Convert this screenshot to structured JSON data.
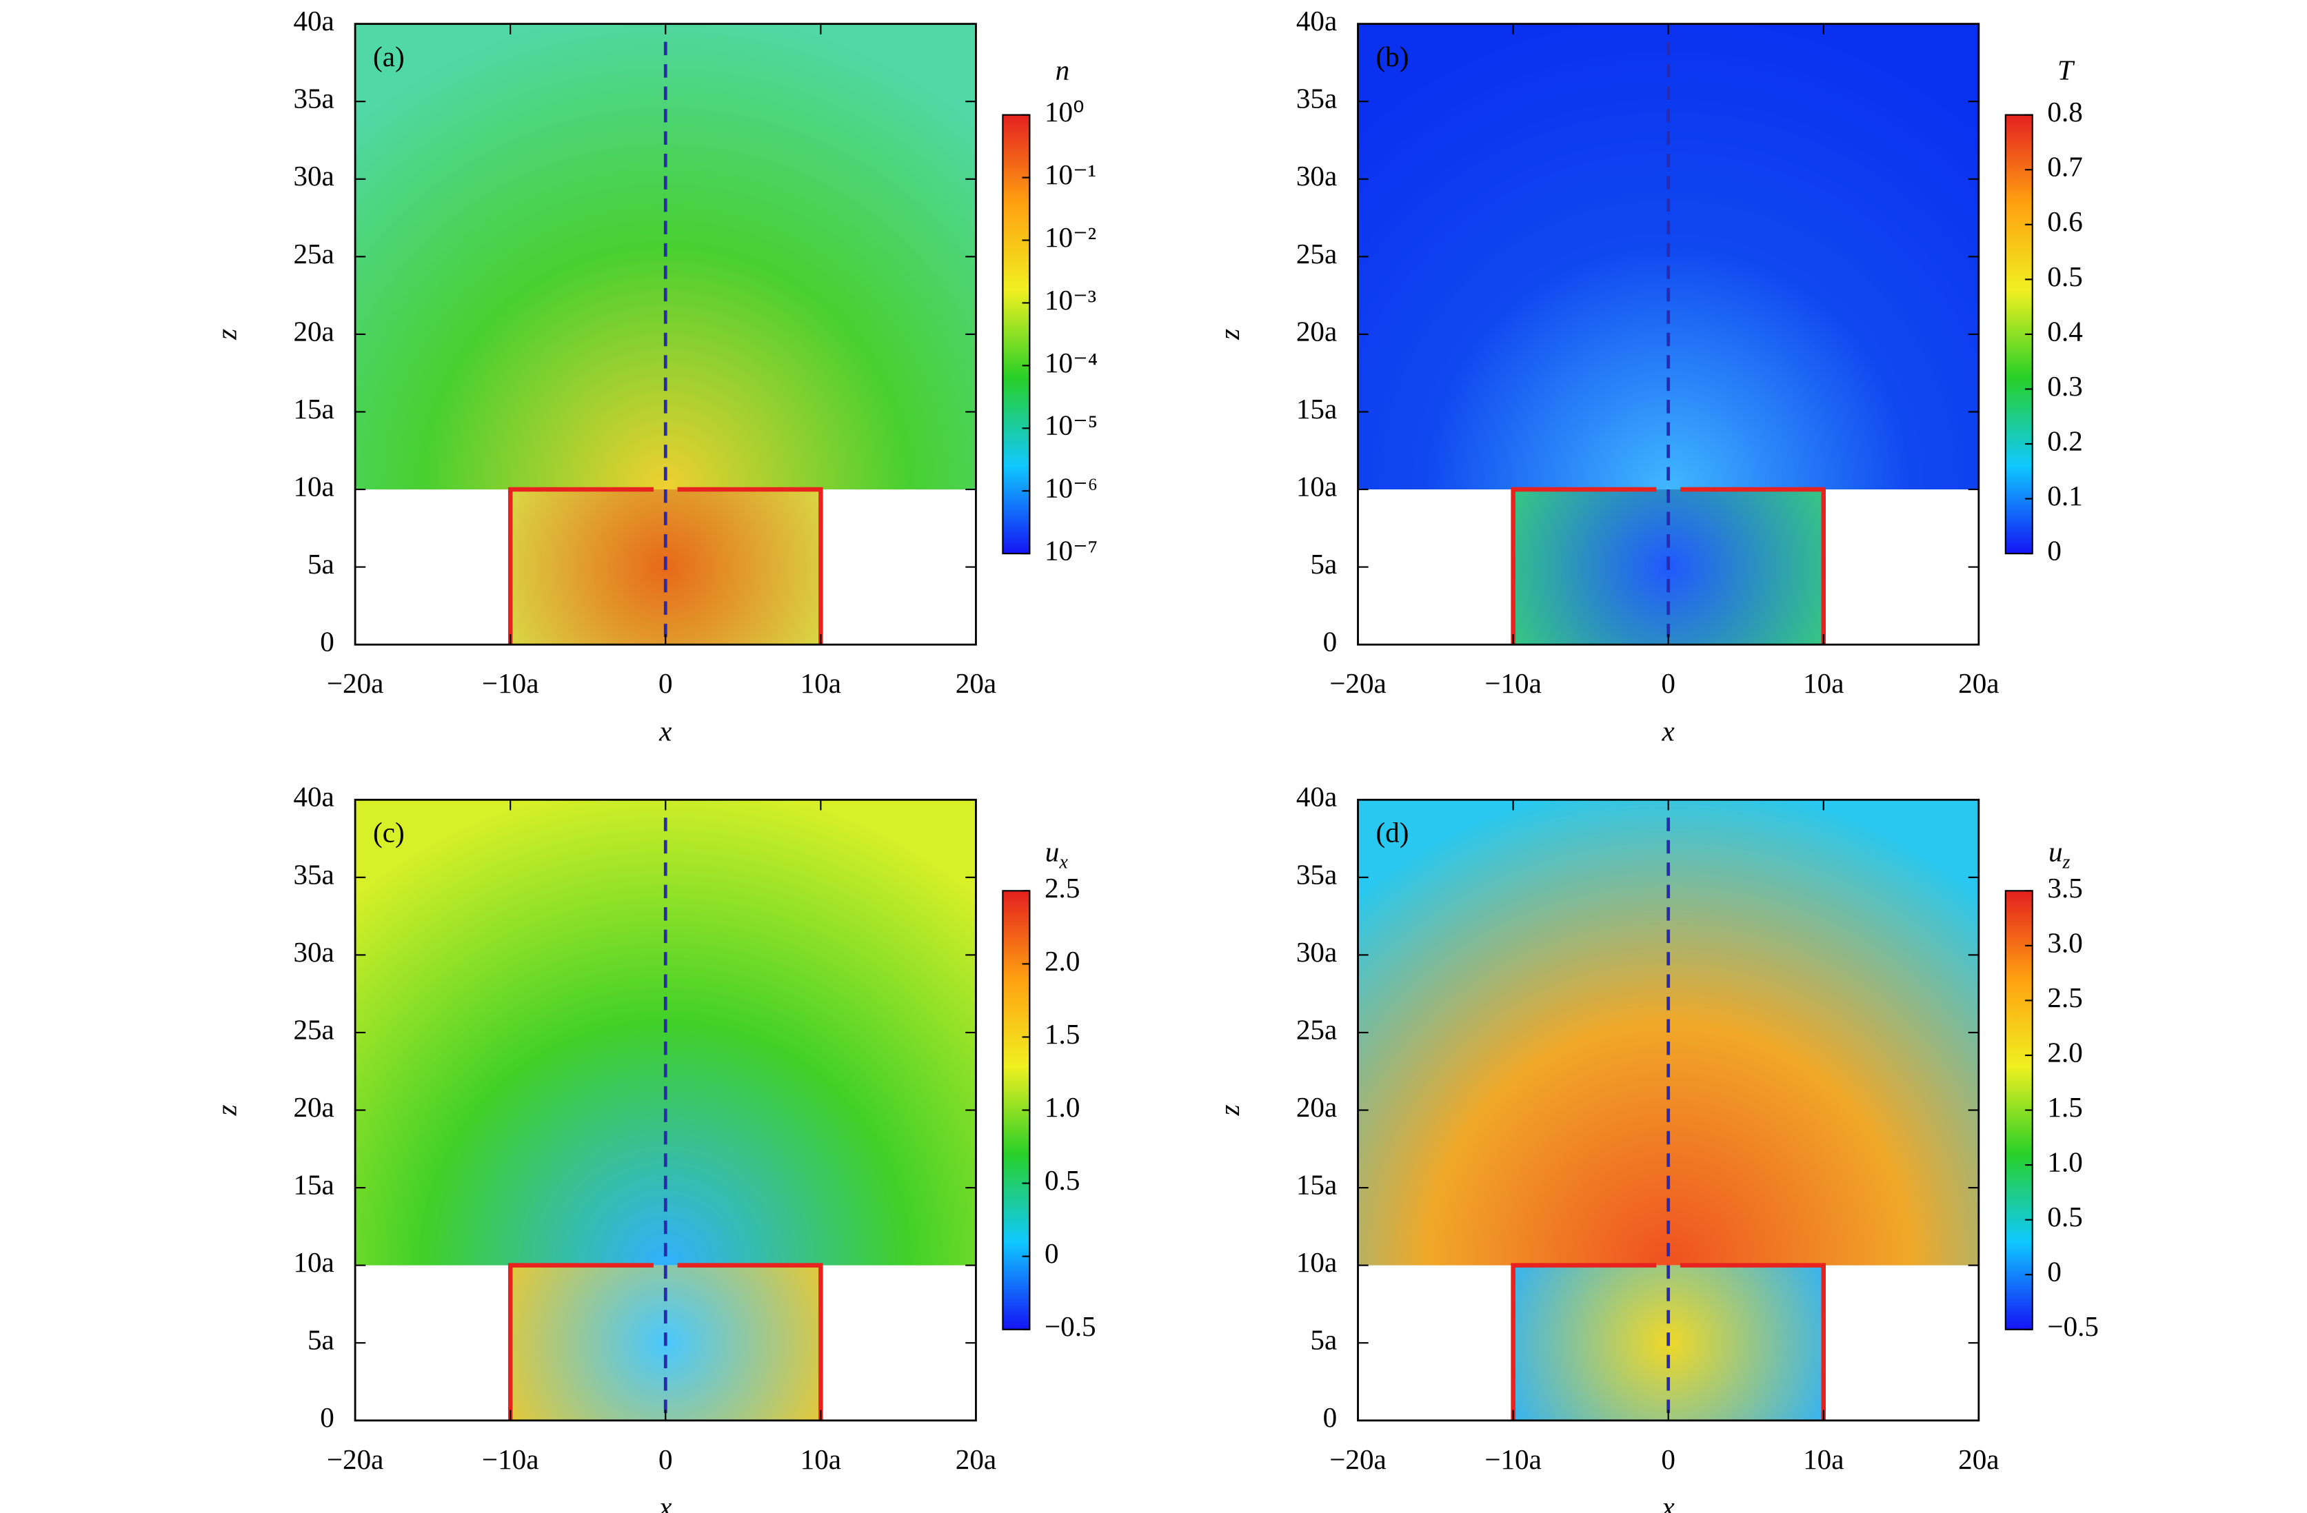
{
  "chart_data": [
    {
      "type": "heatmap",
      "panel_label": "(a)",
      "xlabel": "x",
      "ylabel": "z",
      "colorbar_label": "n",
      "xlim": [
        -20,
        20
      ],
      "ylim": [
        0,
        40
      ],
      "xticks": [
        {
          "value": -20,
          "label": "−20a"
        },
        {
          "value": -10,
          "label": "−10a"
        },
        0,
        {
          "value": 10,
          "label": "10a"
        },
        {
          "value": 20,
          "label": "20a"
        }
      ],
      "yticks": [
        0,
        {
          "value": 5,
          "label": "5a"
        },
        {
          "value": 10,
          "label": "10a"
        },
        {
          "value": 15,
          "label": "15a"
        },
        {
          "value": 20,
          "label": "20a"
        },
        {
          "value": 25,
          "label": "25a"
        },
        {
          "value": 30,
          "label": "30a"
        },
        {
          "value": 35,
          "label": "35a"
        },
        {
          "value": 40,
          "label": "40a"
        }
      ],
      "colorbar_lim": [
        1e-07,
        1
      ],
      "colorbar_scale": "log",
      "colorbar_ticks": [
        {
          "value": 1,
          "label": "10⁰"
        },
        {
          "value": 0.1,
          "label": "10⁻¹"
        },
        {
          "value": 0.01,
          "label": "10⁻²"
        },
        {
          "value": 0.001,
          "label": "10⁻³"
        },
        {
          "value": 0.0001,
          "label": "10⁻⁴"
        },
        {
          "value": 1e-05,
          "label": "10⁻⁵"
        },
        {
          "value": 1e-06,
          "label": "10⁻⁶"
        },
        {
          "value": 1e-07,
          "label": "10⁻⁷"
        }
      ],
      "colormap": [
        "#1414f5",
        "#10c8ff",
        "#28d028",
        "#f0f020",
        "#ffa010",
        "#e42020"
      ],
      "field": {
        "outer": [
          "#f0d030",
          "#48d030",
          "#50d8a8"
        ],
        "inner": [
          "#e86818",
          "#d8e048"
        ]
      },
      "outline": {
        "x": [
          -10,
          10
        ],
        "z": [
          0,
          10
        ],
        "color": "#e8231f"
      },
      "centerline": {
        "x": 0,
        "color": "#2a2ab0"
      }
    },
    {
      "type": "heatmap",
      "panel_label": "(b)",
      "xlabel": "x",
      "ylabel": "z",
      "colorbar_label": "T",
      "xlim": [
        -20,
        20
      ],
      "ylim": [
        0,
        40
      ],
      "xticks": [
        {
          "value": -20,
          "label": "−20a"
        },
        {
          "value": -10,
          "label": "−10a"
        },
        0,
        {
          "value": 10,
          "label": "10a"
        },
        {
          "value": 20,
          "label": "20a"
        }
      ],
      "yticks": [
        0,
        {
          "value": 5,
          "label": "5a"
        },
        {
          "value": 10,
          "label": "10a"
        },
        {
          "value": 15,
          "label": "15a"
        },
        {
          "value": 20,
          "label": "20a"
        },
        {
          "value": 25,
          "label": "25a"
        },
        {
          "value": 30,
          "label": "30a"
        },
        {
          "value": 35,
          "label": "35a"
        },
        {
          "value": 40,
          "label": "40a"
        }
      ],
      "colorbar_lim": [
        0,
        0.8
      ],
      "colorbar_scale": "linear",
      "colorbar_ticks": [
        0,
        0.1,
        0.2,
        0.3,
        0.4,
        0.5,
        0.6,
        0.7,
        0.8
      ],
      "colormap": [
        "#1414f5",
        "#10c8ff",
        "#28d028",
        "#f0f020",
        "#ffa010",
        "#e42020"
      ],
      "field": {
        "outer": [
          "#40b8ff",
          "#1048f0",
          "#0a30f0"
        ],
        "inner": [
          "#2058ff",
          "#38d078"
        ]
      },
      "outline": {
        "x": [
          -10,
          10
        ],
        "z": [
          0,
          10
        ],
        "color": "#e8231f"
      },
      "centerline": {
        "x": 0,
        "color": "#2a2ab0"
      }
    },
    {
      "type": "heatmap",
      "panel_label": "(c)",
      "xlabel": "x",
      "ylabel": "z",
      "colorbar_label": {
        "text": "u",
        "subscript": "x"
      },
      "xlim": [
        -20,
        20
      ],
      "ylim": [
        0,
        40
      ],
      "xticks": [
        {
          "value": -20,
          "label": "−20a"
        },
        {
          "value": -10,
          "label": "−10a"
        },
        0,
        {
          "value": 10,
          "label": "10a"
        },
        {
          "value": 20,
          "label": "20a"
        }
      ],
      "yticks": [
        0,
        {
          "value": 5,
          "label": "5a"
        },
        {
          "value": 10,
          "label": "10a"
        },
        {
          "value": 15,
          "label": "15a"
        },
        {
          "value": 20,
          "label": "20a"
        },
        {
          "value": 25,
          "label": "25a"
        },
        {
          "value": 30,
          "label": "30a"
        },
        {
          "value": 35,
          "label": "35a"
        },
        {
          "value": 40,
          "label": "40a"
        }
      ],
      "colorbar_lim": [
        -0.5,
        2.5
      ],
      "colorbar_scale": "linear",
      "colorbar_ticks": [
        2.5,
        {
          "value": 2,
          "label": "2.0"
        },
        1.5,
        {
          "value": 1,
          "label": "1.0"
        },
        0.5,
        0,
        {
          "value": -0.5,
          "label": "−0.5"
        }
      ],
      "colormap": [
        "#1414f5",
        "#10c8ff",
        "#28d028",
        "#f0f020",
        "#ffa010",
        "#e42020"
      ],
      "field": {
        "outer": [
          "#30b0ff",
          "#40d028",
          "#d8f028"
        ],
        "inner": [
          "#48c8ff",
          "#f0c828"
        ]
      },
      "outline": {
        "x": [
          -10,
          10
        ],
        "z": [
          0,
          10
        ],
        "color": "#e8231f"
      },
      "centerline": {
        "x": 0,
        "color": "#2a2ab0"
      }
    },
    {
      "type": "heatmap",
      "panel_label": "(d)",
      "xlabel": "x",
      "ylabel": "z",
      "colorbar_label": {
        "text": "u",
        "subscript": "z"
      },
      "xlim": [
        -20,
        20
      ],
      "ylim": [
        0,
        40
      ],
      "xticks": [
        {
          "value": -20,
          "label": "−20a"
        },
        {
          "value": -10,
          "label": "−10a"
        },
        0,
        {
          "value": 10,
          "label": "10a"
        },
        {
          "value": 20,
          "label": "20a"
        }
      ],
      "yticks": [
        0,
        {
          "value": 5,
          "label": "5a"
        },
        {
          "value": 10,
          "label": "10a"
        },
        {
          "value": 15,
          "label": "15a"
        },
        {
          "value": 20,
          "label": "20a"
        },
        {
          "value": 25,
          "label": "25a"
        },
        {
          "value": 30,
          "label": "30a"
        },
        {
          "value": 35,
          "label": "35a"
        },
        {
          "value": 40,
          "label": "40a"
        }
      ],
      "colorbar_lim": [
        -0.5,
        3.5
      ],
      "colorbar_scale": "linear",
      "colorbar_ticks": [
        3.5,
        {
          "value": 3,
          "label": "3.0"
        },
        2.5,
        {
          "value": 2,
          "label": "2.0"
        },
        1.5,
        {
          "value": 1,
          "label": "1.0"
        },
        0.5,
        0,
        {
          "value": -0.5,
          "label": "−0.5"
        }
      ],
      "colormap": [
        "#1414f5",
        "#10c8ff",
        "#28d028",
        "#f0f020",
        "#ffa010",
        "#e42020"
      ],
      "field": {
        "outer": [
          "#f05020",
          "#f0a828",
          "#28c8f0"
        ],
        "inner": [
          "#f0d828",
          "#28b0ff"
        ]
      },
      "outline": {
        "x": [
          -10,
          10
        ],
        "z": [
          0,
          10
        ],
        "color": "#e8231f"
      },
      "centerline": {
        "x": 0,
        "color": "#2a2ab0"
      }
    }
  ]
}
